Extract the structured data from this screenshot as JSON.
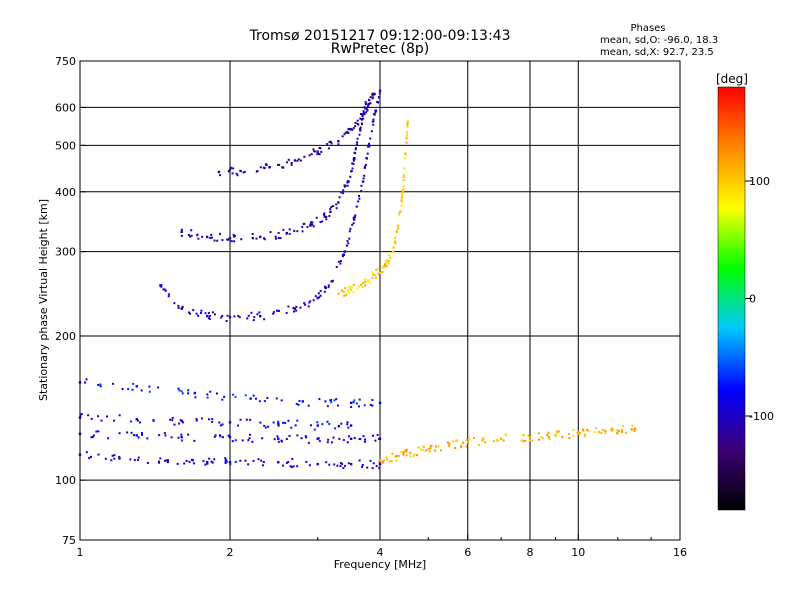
{
  "header": {
    "title": "Tromsø 20151217 09:12:00-09:13:43",
    "subtitle": "RwPretec (8p)"
  },
  "stats": {
    "heading": "Phases",
    "line_o": "mean, sd,O: -96.0, 18.3",
    "line_x": "mean, sd,X:  92.7, 23.5"
  },
  "colorbar": {
    "label": "[deg]",
    "tick_labels": [
      "100",
      "0",
      "-100"
    ],
    "colors": [
      "#000000",
      "#3c0078",
      "#0000ff",
      "#00c8ff",
      "#00ff00",
      "#ffff00",
      "#ff8800",
      "#ff0000"
    ]
  },
  "chart_data": {
    "type": "scatter",
    "xlabel": "Frequency [MHz]",
    "ylabel": "Stationary phase Virtual Height [km]",
    "x_scale": "log",
    "y_scale": "log",
    "xlim": [
      1,
      16
    ],
    "ylim": [
      75,
      750
    ],
    "x_ticks": [
      1,
      2,
      4,
      6,
      8,
      10,
      16
    ],
    "x_tick_labels": [
      "1",
      "2",
      "4",
      "6",
      "8",
      "10",
      "16"
    ],
    "y_ticks": [
      75,
      100,
      200,
      300,
      400,
      500,
      600,
      750
    ],
    "y_tick_labels": [
      "75",
      "100",
      "200",
      "300",
      "400",
      "500",
      "600",
      "750"
    ],
    "x_grid": [
      2,
      4,
      6,
      8,
      10
    ],
    "y_grid": [
      100,
      200,
      300,
      400,
      500,
      600
    ],
    "color_scale": {
      "min": -180,
      "max": 180,
      "unit": "deg"
    },
    "traces": [
      {
        "f": [
          1.0,
          1.2,
          1.5,
          1.8,
          2.0,
          2.5,
          3.0,
          3.5,
          4.0
        ],
        "h": [
          113,
          111,
          110,
          109,
          109,
          109,
          108,
          108,
          108
        ],
        "phase": -95
      },
      {
        "f": [
          1.0,
          1.3,
          1.6,
          2.0,
          2.5,
          3.0,
          3.5,
          4.0
        ],
        "h": [
          125,
          124,
          123,
          123,
          122,
          122,
          122,
          122
        ],
        "phase": -90
      },
      {
        "f": [
          1.0,
          1.3,
          1.6,
          2.0,
          2.5,
          3.0,
          3.5
        ],
        "h": [
          135,
          134,
          133,
          132,
          131,
          130,
          130
        ],
        "phase": -85
      },
      {
        "f": [
          1.0,
          1.3,
          1.7,
          2.2,
          2.8,
          3.5,
          4.0
        ],
        "h": [
          160,
          157,
          152,
          148,
          146,
          145,
          145
        ],
        "phase": -75
      },
      {
        "f": [
          1.45,
          1.6,
          1.8,
          2.0,
          2.3,
          2.7,
          3.0,
          3.2,
          3.4,
          3.55,
          3.7,
          3.8,
          3.9,
          4.0
        ],
        "h": [
          255,
          228,
          220,
          219,
          220,
          228,
          240,
          260,
          300,
          350,
          420,
          500,
          580,
          650
        ],
        "phase": -100
      },
      {
        "f": [
          3.3,
          3.5,
          3.7,
          3.9,
          4.1,
          4.25,
          4.35,
          4.45,
          4.5,
          4.55
        ],
        "h": [
          245,
          250,
          258,
          268,
          280,
          300,
          340,
          400,
          480,
          560
        ],
        "phase": 100
      },
      {
        "f": [
          1.6,
          1.8,
          2.0,
          2.3,
          2.6,
          2.9,
          3.1,
          3.3,
          3.45,
          3.55,
          3.65,
          3.75
        ],
        "h": [
          330,
          322,
          320,
          322,
          328,
          340,
          355,
          380,
          420,
          470,
          540,
          610
        ],
        "phase": -105
      },
      {
        "f": [
          1.9,
          2.1,
          2.4,
          2.7,
          3.0,
          3.3,
          3.5,
          3.7,
          3.8,
          3.9
        ],
        "h": [
          440,
          442,
          450,
          465,
          485,
          510,
          540,
          580,
          610,
          640
        ],
        "phase": -110
      },
      {
        "f": [
          4.0,
          4.3,
          4.6,
          5.0,
          5.5,
          6.0,
          7.0,
          8.0,
          9.0,
          10.0,
          11.0,
          12.0,
          13.0
        ],
        "h": [
          110,
          112,
          114,
          116,
          118,
          120,
          122,
          123,
          124,
          125,
          126,
          127,
          128
        ],
        "phase": 110
      }
    ]
  }
}
